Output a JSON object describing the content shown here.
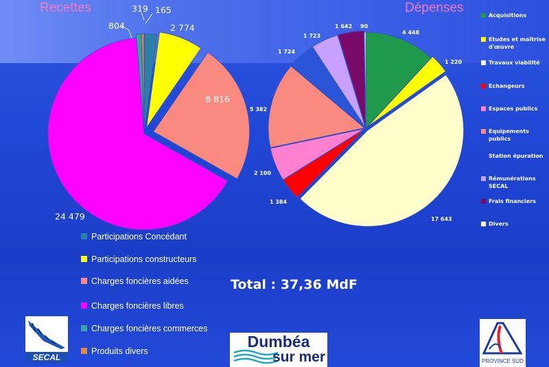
{
  "chart_data": [
    {
      "type": "pie",
      "title": "Recettes",
      "slices": [
        {
          "name": "Participations Concédant",
          "value": 804,
          "value_label": "804",
          "color": "#2e7fa8"
        },
        {
          "name": "Participations constructeurs",
          "value": 2774,
          "value_label": "2 774",
          "color": "#ffff00"
        },
        {
          "name": "Charges foncières aidées",
          "value": 8816,
          "value_label": "8 816",
          "color": "#fa8a80"
        },
        {
          "name": "Charges foncières libres",
          "value": 24479,
          "value_label": "24 479",
          "color": "#ff00ff"
        },
        {
          "name": "Charges foncières commerces",
          "value": 319,
          "value_label": "319",
          "color": "#3aa3a0"
        },
        {
          "name": "Produits divers",
          "value": 165,
          "value_label": "165",
          "color": "#e08840"
        }
      ],
      "legend_items": [
        {
          "name": "Participations Concédant",
          "color": "#2e7fa8"
        },
        {
          "name": "Participations constructeurs",
          "color": "#ffff00"
        },
        {
          "name": "Charges foncières aidées",
          "color": "#fa8a80"
        },
        {
          "name": "Charges foncières libres",
          "color": "#ff00ff"
        },
        {
          "name": "Charges foncières commerces",
          "color": "#3aa3a0"
        },
        {
          "name": "Produits divers",
          "color": "#e08840"
        }
      ]
    },
    {
      "type": "pie",
      "title": "Dépenses",
      "slices": [
        {
          "name": "Acquisitions",
          "value": 4448,
          "value_label": "4 448",
          "color": "#1f9a4c"
        },
        {
          "name": "Etudes et maîtrise d'œuvre",
          "value": 1220,
          "value_label": "1 220",
          "color": "#ffff00"
        },
        {
          "name": "Divers",
          "value": 17643,
          "value_label": "17 643",
          "color": "#ffffcc"
        },
        {
          "name": "Echangeurs",
          "value": 1384,
          "value_label": "1 384",
          "color": "#ff0000"
        },
        {
          "name": "Espaces publics",
          "value": 2100,
          "value_label": "2 100",
          "color": "#ff7fd0"
        },
        {
          "name": "Equipements publics",
          "value": 5382,
          "value_label": "5 382",
          "color": "#fa8a80"
        },
        {
          "name": "Station épuration",
          "value": 1724,
          "value_label": "1 724",
          "color": "#2a55d8"
        },
        {
          "name": "Rémunérations SECAL",
          "value": 1723,
          "value_label": "1 723",
          "color": "#c8a0ff"
        },
        {
          "name": "Frais financiers",
          "value": 1642,
          "value_label": "1 642",
          "color": "#7a0a6a"
        },
        {
          "name": "Travaux viabilité",
          "value": 90,
          "value_label": "90",
          "color": "#ffffff"
        }
      ],
      "legend_items": [
        {
          "name": "Acquisitions",
          "color": "#1f9a4c"
        },
        {
          "name": "Etudes et maîtrise d'œuvre",
          "color": "#ffff00"
        },
        {
          "name": "Travaux viabilité",
          "color": "#ffffff"
        },
        {
          "name": "Echangeurs",
          "color": "#ff0000"
        },
        {
          "name": "Espaces publics",
          "color": "#ff7fd0"
        },
        {
          "name": "Equipements publics",
          "color": "#fa8a80"
        },
        {
          "name": "Station épuration",
          "color": ""
        },
        {
          "name": "Rémunérations SECAL",
          "color": "#c8a0ff"
        },
        {
          "name": "Frais financiers",
          "color": "#7a0a6a"
        },
        {
          "name": "Divers",
          "color": "#ffffcc"
        }
      ]
    }
  ],
  "total": "Total : 37,36 MdF",
  "logos": {
    "secal": "SECAL",
    "dumbea_line1": "Dumbéa",
    "dumbea_line2": "sur mer",
    "province": "PROVINCE SUD"
  }
}
